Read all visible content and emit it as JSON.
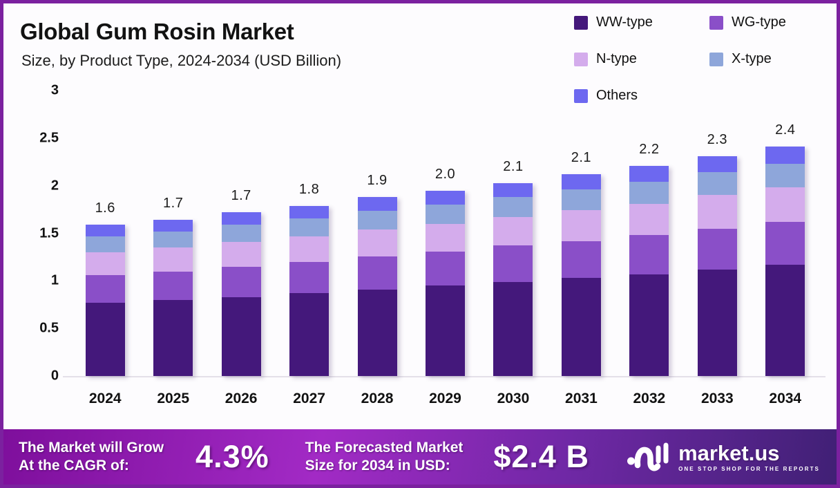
{
  "frame": {
    "border_color": "#7B219F",
    "background": "#FDFCFE"
  },
  "header": {
    "title": "Global Gum Rosin Market",
    "subtitle": "Size, by Product Type, 2024-2034 (USD Billion)"
  },
  "chart_data": {
    "type": "bar",
    "variant": "stacked",
    "title": "Global Gum Rosin Market",
    "subtitle": "Size, by Product Type, 2024-2034 (USD Billion)",
    "unit": "USD Billion",
    "categories": [
      "2024",
      "2025",
      "2026",
      "2027",
      "2028",
      "2029",
      "2030",
      "2031",
      "2032",
      "2033",
      "2034"
    ],
    "series": [
      {
        "name": "WW-type",
        "color": "#44187B",
        "values": [
          0.77,
          0.8,
          0.83,
          0.87,
          0.91,
          0.95,
          0.99,
          1.03,
          1.07,
          1.12,
          1.17
        ]
      },
      {
        "name": "WG-type",
        "color": "#8A4FC8",
        "values": [
          0.29,
          0.3,
          0.32,
          0.33,
          0.35,
          0.36,
          0.38,
          0.39,
          0.41,
          0.43,
          0.45
        ]
      },
      {
        "name": "N-type",
        "color": "#D4ACEC",
        "values": [
          0.24,
          0.25,
          0.26,
          0.27,
          0.28,
          0.29,
          0.3,
          0.32,
          0.33,
          0.35,
          0.36
        ]
      },
      {
        "name": "X-type",
        "color": "#8EA6DA",
        "values": [
          0.17,
          0.17,
          0.18,
          0.19,
          0.2,
          0.2,
          0.21,
          0.22,
          0.23,
          0.24,
          0.25
        ]
      },
      {
        "name": "Others",
        "color": "#6D68F0",
        "values": [
          0.12,
          0.12,
          0.13,
          0.13,
          0.14,
          0.15,
          0.15,
          0.16,
          0.17,
          0.17,
          0.18
        ]
      }
    ],
    "totals_labels": [
      "1.6",
      "1.7",
      "1.7",
      "1.8",
      "1.9",
      "2.0",
      "2.1",
      "2.1",
      "2.2",
      "2.3",
      "2.4"
    ],
    "yticks": [
      "0",
      "0.5",
      "1",
      "1.5",
      "2",
      "2.5",
      "3"
    ],
    "ylim": [
      0,
      3
    ],
    "grid": false,
    "legend_position": "top-right"
  },
  "footer": {
    "growth": {
      "line1": "The Market will Grow",
      "line2": "At the CAGR of:",
      "value": "4.3%"
    },
    "forecast": {
      "line1": "The Forecasted Market",
      "line2": "Size for 2034 in USD:",
      "value": "$2.4 B"
    },
    "brand": {
      "name": "market.us",
      "tagline": "ONE STOP SHOP FOR THE REPORTS"
    }
  }
}
